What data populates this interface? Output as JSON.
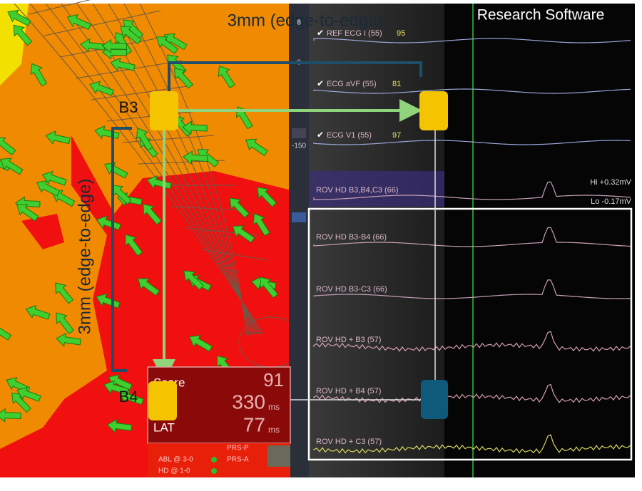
{
  "header": {
    "title": "Research Software"
  },
  "annotations": {
    "spacing_top": "3mm (edge-to-edge)",
    "spacing_side": "3mm (edge-to-edge)",
    "electrode_a": "B3",
    "electrode_b": "B4"
  },
  "toolbar": {
    "labels": [
      "8",
      "0",
      "-150"
    ]
  },
  "channels": [
    {
      "label": "REF ECG I (55)",
      "value": "95"
    },
    {
      "label": "ECG aVF (55)",
      "value": "81"
    },
    {
      "label": "ECG V1 (55)",
      "value": "97"
    },
    {
      "label": "ROV HD  B3,B4,C3 (66)"
    },
    {
      "label": "ROV HD  B3-B4 (66)"
    },
    {
      "label": "ROV HD  B3-C3 (66)"
    },
    {
      "label": "ROV HD + B3 (57)"
    },
    {
      "label": "ROV HD + B4 (57)"
    },
    {
      "label": "ROV HD + C3 (57)"
    }
  ],
  "scale": {
    "hi": "Hi +0.32mV",
    "lo": "Lo -0.17mV"
  },
  "info_box": {
    "score_label": "Score",
    "score": "91",
    "duration": "330",
    "duration_unit": "ms",
    "lat_label": "LAT",
    "lat": "77",
    "lat_unit": "ms"
  },
  "status": {
    "abl": "ABL @ 3-0",
    "hd": "HD @ 1-0",
    "prs_p": "PRS-P",
    "prs_a": "PRS-A"
  }
}
